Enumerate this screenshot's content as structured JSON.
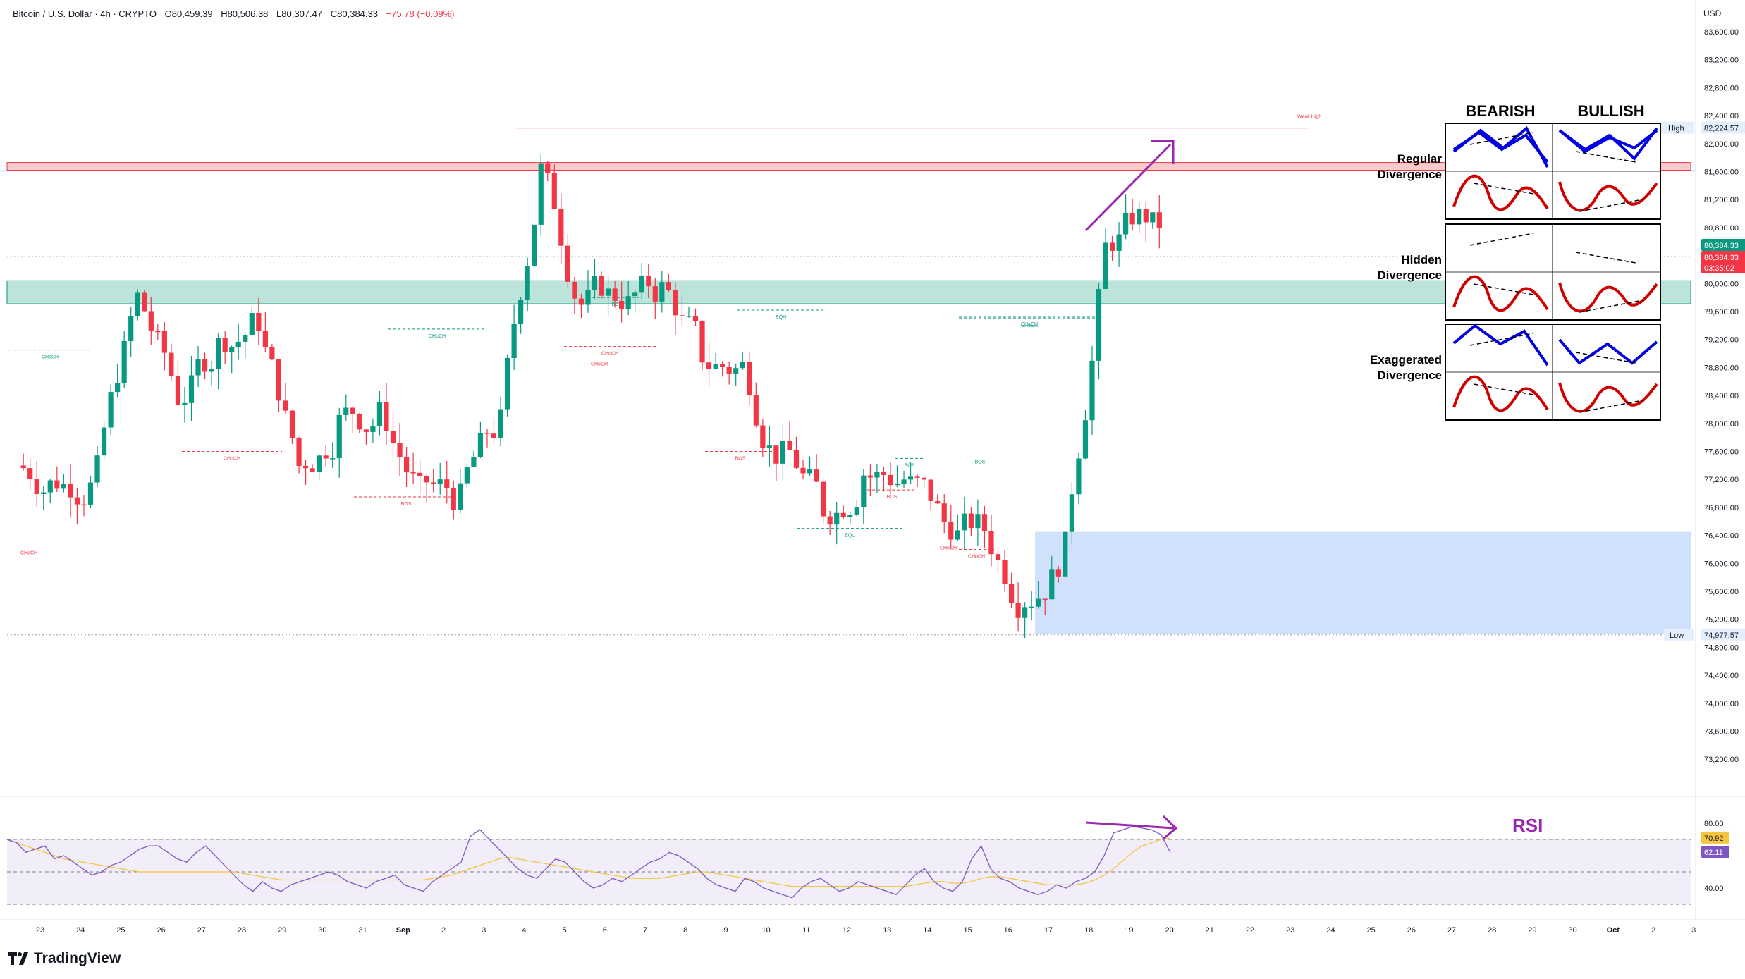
{
  "header": {
    "symbol": "Bitcoin / U.S. Dollar · 4h · CRYPTO",
    "open": "O80,459.39",
    "high": "H80,506.38",
    "low": "L80,307.47",
    "close": "C80,384.33",
    "change": "−75.78 (−0.09%)"
  },
  "currency": "USD",
  "brand": "TradingView",
  "colors": {
    "up": "#089981",
    "down": "#f23645",
    "rsi": "#7e57c2",
    "signal": "#f5c542",
    "demand": "#c8dcfb",
    "supply": "#f7c5c8",
    "support": "#b2dfd4",
    "arrow": "#9c27b0"
  },
  "chart_data": {
    "type": "line",
    "title": "Bitcoin / U.S. Dollar · 4h · CRYPTO",
    "ylabel": "USD",
    "ylim": [
      72500,
      83900
    ],
    "price_ticks": [
      "83,600.00",
      "83,200.00",
      "82,800.00",
      "82,400.00",
      "82,000.00",
      "81,600.00",
      "81,200.00",
      "80,800.00",
      "80,400.00",
      "80,000.00",
      "79,600.00",
      "79,200.00",
      "78,800.00",
      "78,400.00",
      "78,000.00",
      "77,600.00",
      "77,200.00",
      "76,800.00",
      "76,400.00",
      "76,000.00",
      "75,600.00",
      "75,200.00",
      "74,800.00",
      "74,400.00",
      "74,000.00",
      "73,600.00",
      "73,200.00"
    ],
    "date_ticks": [
      "23",
      "24",
      "25",
      "26",
      "27",
      "28",
      "29",
      "30",
      "31",
      "Sep",
      "2",
      "3",
      "4",
      "5",
      "6",
      "7",
      "8",
      "9",
      "10",
      "11",
      "12",
      "13",
      "14",
      "15",
      "16",
      "17",
      "18",
      "19",
      "20",
      "21",
      "22",
      "23",
      "24",
      "25",
      "26",
      "27",
      "28",
      "29",
      "30",
      "Oct",
      "2",
      "3"
    ],
    "x": [
      "Aug 23",
      "Aug 24",
      "Aug 25",
      "Aug 26",
      "Aug 27",
      "Aug 28",
      "Aug 29",
      "Aug 30",
      "Aug 31",
      "Sep 1",
      "Sep 2",
      "Sep 3",
      "Sep 4",
      "Sep 5",
      "Sep 6",
      "Sep 7",
      "Sep 8",
      "Sep 9",
      "Sep 10",
      "Sep 11",
      "Sep 12",
      "Sep 13",
      "Sep 14",
      "Sep 15",
      "Sep 16",
      "Sep 17",
      "Sep 18",
      "Sep 19",
      "Sep 20"
    ],
    "series": [
      {
        "name": "Bitcoin / U.S. Dollar",
        "values": [
          77200,
          77300,
          79800,
          78400,
          79100,
          79500,
          77400,
          78000,
          78100,
          77000,
          76900,
          78000,
          81600,
          79700,
          79800,
          79900,
          79000,
          78800,
          77500,
          76800,
          77300,
          77200,
          76600,
          76500,
          75500,
          76200,
          80500,
          81000,
          80384
        ]
      }
    ],
    "price_labels": {
      "high_label": "High",
      "high_value": "82,224.57",
      "high": 82224.57,
      "low_label": "Low",
      "low_value": "74,977.57",
      "low": 74977.57,
      "last_price": "80,384.33",
      "last": 80384.33,
      "last_price_2": "80,384.33",
      "countdown": "03:35:02"
    },
    "zones": {
      "supply": [
        81620,
        81730
      ],
      "support": [
        79710,
        80040
      ],
      "demand": [
        74990,
        76450
      ]
    },
    "structure_labels": [
      "CHoCH",
      "CHoCH",
      "CHoCH",
      "CHoCH",
      "CHoCH",
      "BOS",
      "BOS",
      "BOS",
      "BOS",
      "CHoCH",
      "EQH",
      "CHoCH",
      "BOS",
      "CHoCH",
      "BOS",
      "EQL",
      "CHoCH",
      "CHoCH",
      "Weak High"
    ],
    "annotation_rsi": "RSI",
    "rsi": {
      "ticks": [
        "80.00",
        "40.00"
      ],
      "ylim": [
        25,
        95
      ],
      "upper": 70,
      "lower": 30,
      "mid": 50,
      "label_signal": "70.92",
      "label_rsi": "62.11",
      "values": [
        70,
        68,
        62,
        64,
        66,
        58,
        60,
        56,
        52,
        48,
        50,
        54,
        56,
        60,
        64,
        66,
        66,
        62,
        58,
        56,
        62,
        66,
        60,
        54,
        48,
        42,
        38,
        44,
        40,
        38,
        42,
        44,
        46,
        48,
        50,
        48,
        44,
        42,
        40,
        44,
        46,
        48,
        42,
        40,
        38,
        44,
        48,
        52,
        56,
        72,
        76,
        70,
        64,
        58,
        52,
        48,
        46,
        52,
        58,
        56,
        50,
        44,
        40,
        42,
        46,
        44,
        48,
        52,
        56,
        58,
        62,
        60,
        56,
        52,
        46,
        42,
        40,
        38,
        46,
        44,
        40,
        38,
        36,
        34,
        40,
        44,
        46,
        42,
        38,
        40,
        44,
        42,
        40,
        38,
        36,
        42,
        48,
        52,
        44,
        40,
        38,
        44,
        58,
        66,
        52,
        46,
        44,
        40,
        38,
        36,
        38,
        42,
        40,
        44,
        46,
        50,
        60,
        74,
        76,
        78,
        77,
        76,
        73,
        62
      ],
      "signal": [
        70,
        68,
        66,
        64,
        62,
        60,
        58,
        57,
        56,
        55,
        54,
        53,
        52,
        51,
        50,
        50,
        50,
        50,
        50,
        50,
        50,
        50,
        50,
        50,
        50,
        49,
        48,
        47,
        46,
        45,
        45,
        45,
        45,
        45,
        45,
        45,
        45,
        45,
        45,
        45,
        45,
        45,
        45,
        45,
        45,
        46,
        47,
        48,
        50,
        52,
        54,
        56,
        58,
        59,
        58,
        57,
        56,
        55,
        54,
        53,
        52,
        51,
        50,
        49,
        48,
        47,
        46,
        46,
        46,
        46,
        47,
        48,
        49,
        50,
        50,
        49,
        48,
        47,
        46,
        45,
        44,
        43,
        42,
        41,
        41,
        41,
        41,
        41,
        41,
        41,
        41,
        41,
        41,
        41,
        41,
        41,
        42,
        43,
        44,
        44,
        43,
        43,
        44,
        46,
        47,
        47,
        46,
        45,
        44,
        43,
        42,
        42,
        42,
        42,
        43,
        45,
        48,
        52,
        57,
        62,
        66,
        68,
        70,
        70.9
      ]
    }
  },
  "divergence_panel": {
    "bearish": "BEARISH",
    "bullish": "BULLISH",
    "rows": [
      {
        "label1": "Regular",
        "label2": "Divergence"
      },
      {
        "label1": "Hidden",
        "label2": "Divergence"
      },
      {
        "label1": "Exaggerated",
        "label2": "Divergence"
      }
    ]
  }
}
